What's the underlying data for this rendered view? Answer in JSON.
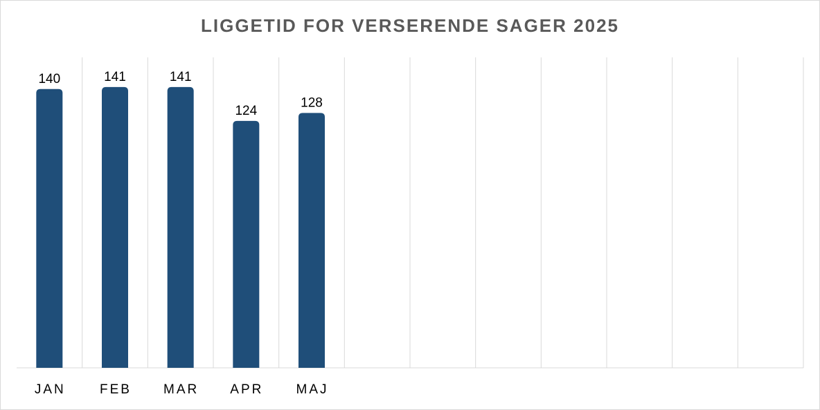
{
  "chart_data": {
    "type": "bar",
    "title": "LIGGETID FOR VERSERENDE SAGER 2025",
    "categories": [
      "JAN",
      "FEB",
      "MAR",
      "APR",
      "MAJ",
      null,
      null,
      null,
      null,
      null,
      null,
      null
    ],
    "values": [
      140,
      141,
      141,
      124,
      128,
      null,
      null,
      null,
      null,
      null,
      null,
      null
    ],
    "color": "#1f4e79",
    "grid": true
  }
}
